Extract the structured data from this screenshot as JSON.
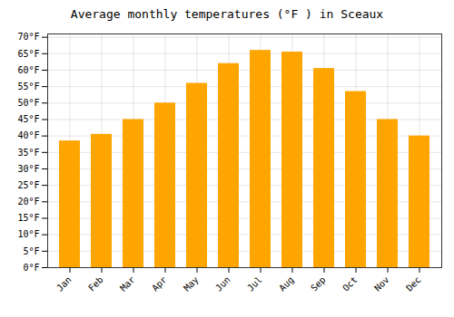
{
  "chart_data": {
    "type": "bar",
    "title": "Average monthly temperatures (°F ) in Sceaux",
    "categories": [
      "Jan",
      "Feb",
      "Mar",
      "Apr",
      "May",
      "Jun",
      "Jul",
      "Aug",
      "Sep",
      "Oct",
      "Nov",
      "Dec"
    ],
    "values": [
      38.5,
      40.5,
      45.0,
      50.0,
      56.0,
      62.0,
      66.0,
      65.5,
      60.5,
      53.5,
      45.0,
      40.0
    ],
    "color": "#FFA500",
    "ylim": [
      0,
      71
    ],
    "yticks": [
      {
        "value": 0,
        "label": "0°F"
      },
      {
        "value": 5,
        "label": "5°F"
      },
      {
        "value": 10,
        "label": "10°F"
      },
      {
        "value": 15,
        "label": "15°F"
      },
      {
        "value": 20,
        "label": "20°F"
      },
      {
        "value": 25,
        "label": "25°F"
      },
      {
        "value": 30,
        "label": "30°F"
      },
      {
        "value": 35,
        "label": "35°F"
      },
      {
        "value": 40,
        "label": "40°F"
      },
      {
        "value": 45,
        "label": "45°F"
      },
      {
        "value": 50,
        "label": "50°F"
      },
      {
        "value": 55,
        "label": "55°F"
      },
      {
        "value": 60,
        "label": "60°F"
      },
      {
        "value": 65,
        "label": "65°F"
      },
      {
        "value": 70,
        "label": "70°F"
      }
    ],
    "grid": true
  }
}
